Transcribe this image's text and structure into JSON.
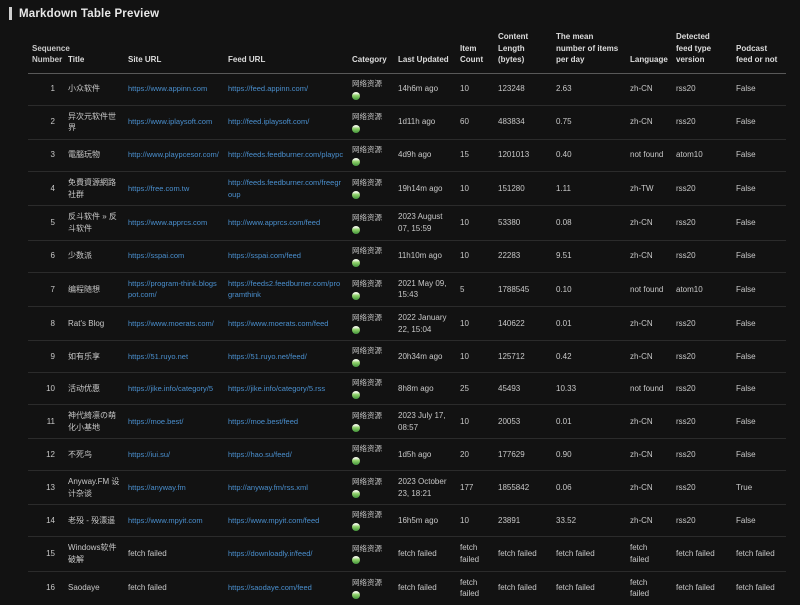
{
  "page_title": "Markdown Table Preview",
  "colors": {
    "background": "#121212",
    "link": "#4a8fce",
    "category_icon_green": "#4e9e42",
    "accent_bar": "#cfcfcf"
  },
  "table": {
    "columns": [
      "Sequence Number",
      "Title",
      "Site URL",
      "Feed URL",
      "Category",
      "Last Updated",
      "Item Count",
      "Content Length (bytes)",
      "The mean number of items per day",
      "Language",
      "Detected feed type version",
      "Podcast feed or not"
    ],
    "rows": [
      {
        "seq": "1",
        "title": "小众软件",
        "site_url": "https://www.appinn.com",
        "feed_url": "https://feed.appinn.com/",
        "category": "网络资源",
        "last_updated": "14h6m ago",
        "item_count": "10",
        "content_length": "123248",
        "mean_per_day": "2.63",
        "language": "zh-CN",
        "feed_type": "rss20",
        "podcast": "False"
      },
      {
        "seq": "2",
        "title": "异次元软件世界",
        "site_url": "https://www.iplaysoft.com",
        "feed_url": "http://feed.iplaysoft.com/",
        "category": "网络资源",
        "last_updated": "1d11h ago",
        "item_count": "60",
        "content_length": "483834",
        "mean_per_day": "0.75",
        "language": "zh-CN",
        "feed_type": "rss20",
        "podcast": "False"
      },
      {
        "seq": "3",
        "title": "電腦玩物",
        "site_url": "http://www.playpcesor.com/",
        "feed_url": "http://feeds.feedburner.com/playpc",
        "category": "网络资源",
        "last_updated": "4d9h ago",
        "item_count": "15",
        "content_length": "1201013",
        "mean_per_day": "0.40",
        "language": "not found",
        "feed_type": "atom10",
        "podcast": "False"
      },
      {
        "seq": "4",
        "title": "免費資源網路社群",
        "site_url": "https://free.com.tw",
        "feed_url": "http://feeds.feedburner.com/freegroup",
        "category": "网络资源",
        "last_updated": "19h14m ago",
        "item_count": "10",
        "content_length": "151280",
        "mean_per_day": "1.11",
        "language": "zh-TW",
        "feed_type": "rss20",
        "podcast": "False"
      },
      {
        "seq": "5",
        "title": "反斗软件 » 反斗软件",
        "site_url": "https://www.apprcs.com",
        "feed_url": "http://www.apprcs.com/feed",
        "category": "网络资源",
        "last_updated": "2023 August 07, 15:59",
        "item_count": "10",
        "content_length": "53380",
        "mean_per_day": "0.08",
        "language": "zh-CN",
        "feed_type": "rss20",
        "podcast": "False"
      },
      {
        "seq": "6",
        "title": "少数派",
        "site_url": "https://sspai.com",
        "feed_url": "https://sspai.com/feed",
        "category": "网络资源",
        "last_updated": "11h10m ago",
        "item_count": "10",
        "content_length": "22283",
        "mean_per_day": "9.51",
        "language": "zh-CN",
        "feed_type": "rss20",
        "podcast": "False"
      },
      {
        "seq": "7",
        "title": "编程随想",
        "site_url": "https://program-think.blogspot.com/",
        "feed_url": "https://feeds2.feedburner.com/programthink",
        "category": "网络资源",
        "last_updated": "2021 May 09, 15:43",
        "item_count": "5",
        "content_length": "1788545",
        "mean_per_day": "0.10",
        "language": "not found",
        "feed_type": "atom10",
        "podcast": "False"
      },
      {
        "seq": "8",
        "title": "Rat's Blog",
        "site_url": "https://www.moerats.com/",
        "feed_url": "https://www.moerats.com/feed",
        "category": "网络资源",
        "last_updated": "2022 January 22, 15:04",
        "item_count": "10",
        "content_length": "140622",
        "mean_per_day": "0.01",
        "language": "zh-CN",
        "feed_type": "rss20",
        "podcast": "False"
      },
      {
        "seq": "9",
        "title": "如有乐享",
        "site_url": "https://51.ruyo.net",
        "feed_url": "https://51.ruyo.net/feed/",
        "category": "网络资源",
        "last_updated": "20h34m ago",
        "item_count": "10",
        "content_length": "125712",
        "mean_per_day": "0.42",
        "language": "zh-CN",
        "feed_type": "rss20",
        "podcast": "False"
      },
      {
        "seq": "10",
        "title": "活动优惠",
        "site_url": "https://jike.info/category/5",
        "feed_url": "https://jike.info/category/5.rss",
        "category": "网络资源",
        "last_updated": "8h8m ago",
        "item_count": "25",
        "content_length": "45493",
        "mean_per_day": "10.33",
        "language": "not found",
        "feed_type": "rss20",
        "podcast": "False"
      },
      {
        "seq": "11",
        "title": "神代綺凛の萌化小基地",
        "site_url": "https://moe.best/",
        "feed_url": "https://moe.best/feed",
        "category": "网络资源",
        "last_updated": "2023 July 17, 08:57",
        "item_count": "10",
        "content_length": "20053",
        "mean_per_day": "0.01",
        "language": "zh-CN",
        "feed_type": "rss20",
        "podcast": "False"
      },
      {
        "seq": "12",
        "title": "不死鸟",
        "site_url": "https://iui.su/",
        "feed_url": "https://hao.su/feed/",
        "category": "网络资源",
        "last_updated": "1d5h ago",
        "item_count": "20",
        "content_length": "177629",
        "mean_per_day": "0.90",
        "language": "zh-CN",
        "feed_type": "rss20",
        "podcast": "False"
      },
      {
        "seq": "13",
        "title": "Anyway.FM 设计杂谈",
        "site_url": "https://anyway.fm",
        "feed_url": "http://anyway.fm/rss.xml",
        "category": "网络资源",
        "last_updated": "2023 October 23, 18:21",
        "item_count": "177",
        "content_length": "1855842",
        "mean_per_day": "0.06",
        "language": "zh-CN",
        "feed_type": "rss20",
        "podcast": "True"
      },
      {
        "seq": "14",
        "title": "老殁 - 殁漂遥",
        "site_url": "https://www.mpyit.com",
        "feed_url": "https://www.mpyit.com/feed",
        "category": "网络资源",
        "last_updated": "16h5m ago",
        "item_count": "10",
        "content_length": "23891",
        "mean_per_day": "33.52",
        "language": "zh-CN",
        "feed_type": "rss20",
        "podcast": "False"
      },
      {
        "seq": "15",
        "title": "Windows软件破解",
        "site_url": "fetch failed",
        "feed_url": "https://downloadly.ir/feed/",
        "category": "网络资源",
        "last_updated": "fetch failed",
        "item_count": "fetch failed",
        "content_length": "fetch failed",
        "mean_per_day": "fetch failed",
        "language": "fetch failed",
        "feed_type": "fetch failed",
        "podcast": "fetch failed"
      },
      {
        "seq": "16",
        "title": "Saodaye",
        "site_url": "fetch failed",
        "feed_url": "https://saodaye.com/feed",
        "category": "网络资源",
        "last_updated": "fetch failed",
        "item_count": "fetch failed",
        "content_length": "fetch failed",
        "mean_per_day": "fetch failed",
        "language": "fetch failed",
        "feed_type": "fetch failed",
        "podcast": "fetch failed"
      }
    ]
  }
}
